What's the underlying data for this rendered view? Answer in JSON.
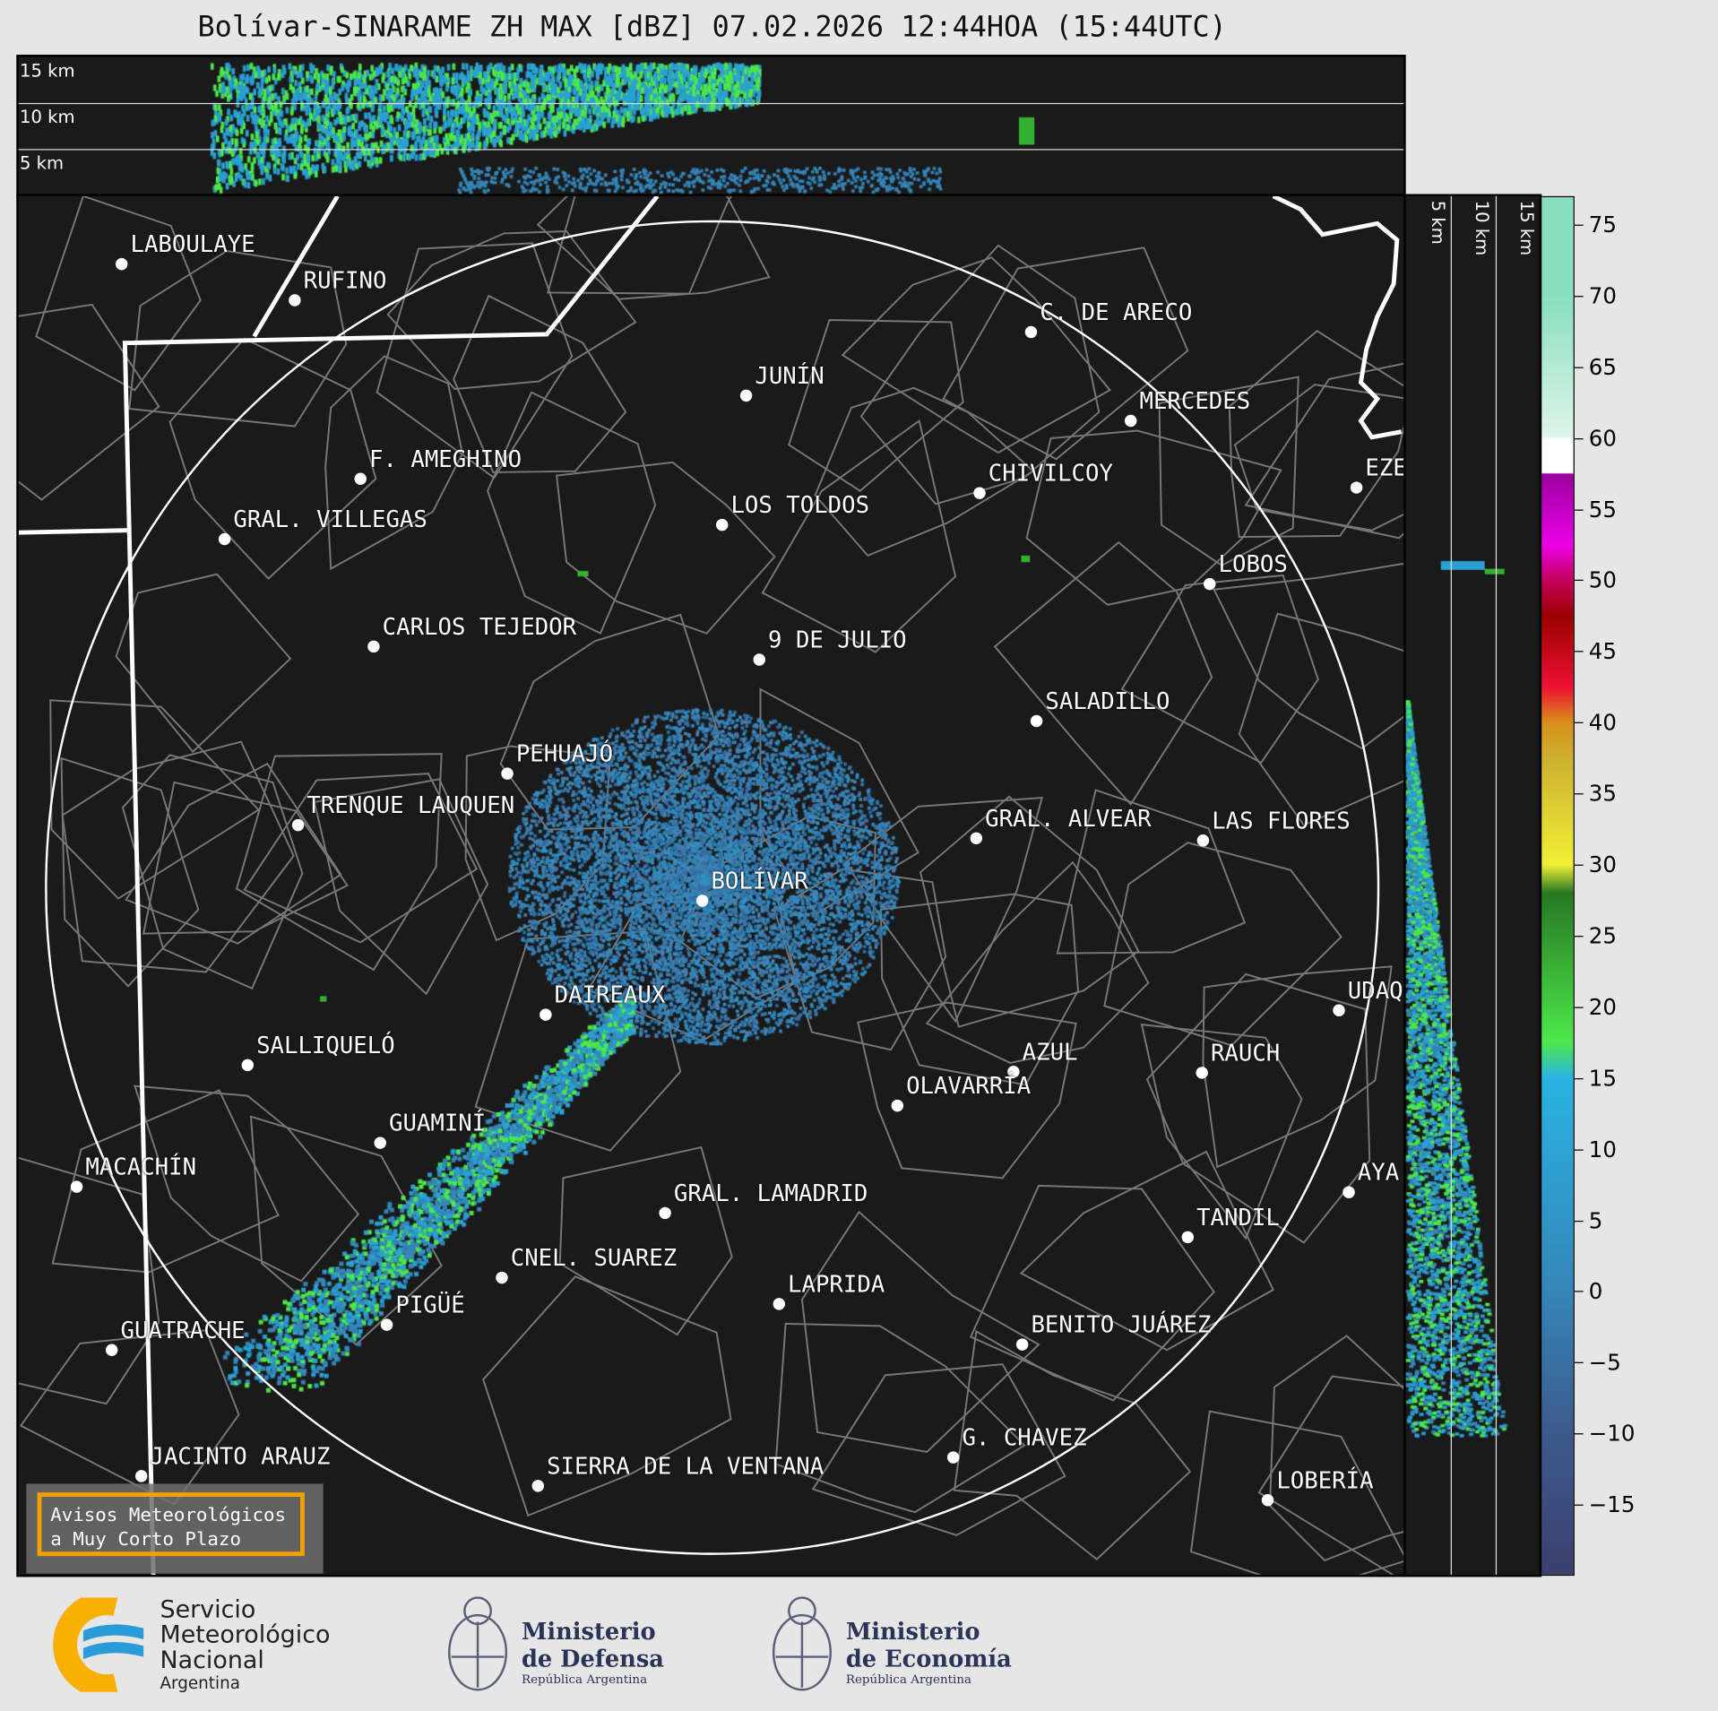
{
  "title": "Bolívar-SINARAME ZH MAX [dBZ] 07.02.2026 12:44HOA (15:44UTC)",
  "top_panel": {
    "height_labels": [
      "15 km",
      "10 km",
      "5 km"
    ]
  },
  "right_panel": {
    "height_labels": [
      "5 km",
      "10 km",
      "15 km"
    ]
  },
  "colorbar": {
    "units": "dBZ",
    "range": [
      -20,
      77
    ],
    "ticks": [
      "75",
      "70",
      "65",
      "60",
      "55",
      "50",
      "45",
      "40",
      "35",
      "30",
      "25",
      "20",
      "15",
      "10",
      "5",
      "0",
      "−5",
      "−10",
      "−15"
    ],
    "tick_values": [
      75,
      70,
      65,
      60,
      55,
      50,
      45,
      40,
      35,
      30,
      25,
      20,
      15,
      10,
      5,
      0,
      -5,
      -10,
      -15
    ],
    "colors": {
      "low": "#3a3f6e",
      "blue": "#2e92c6",
      "cyan": "#29b3e2",
      "green": "#4de84a",
      "dark_green": "#267822",
      "yellow": "#f0f035",
      "orange": "#dd8018",
      "red": "#cc0022",
      "magenta": "#ec00e8",
      "purple": "#9a009e",
      "white": "#ffffff",
      "teal": "#88dfbf"
    }
  },
  "map": {
    "background": "#1a1a1a",
    "radar_site": "BOLÍVAR",
    "cities": [
      "LABOULAYE",
      "RUFINO",
      "C. DE ARECO",
      "JUNÍN",
      "MERCEDES",
      "F. AMEGHINO",
      "CHIVILCOY",
      "EZE",
      "LOS TOLDOS",
      "GRAL. VILLEGAS",
      "LOBOS",
      "CARLOS TEJEDOR",
      "9 DE JULIO",
      "SALADILLO",
      "PEHUAJÓ",
      "TRENQUE LAUQUEN",
      "GRAL. ALVEAR",
      "LAS FLORES",
      "BOLÍVAR",
      "DAIREAUX",
      "UDAQ",
      "SALLIQUELÓ",
      "AZUL",
      "RAUCH",
      "OLAVARRÍA",
      "GUAMINÍ",
      "MACACHÍN",
      "AYA",
      "GRAL. LAMADRID",
      "TANDIL",
      "CNEL. SUAREZ",
      "LAPRIDA",
      "PIGÜÉ",
      "GUATRACHE",
      "BENITO JUÁREZ",
      "G. CHAVEZ",
      "JACINTO ARAUZ",
      "SIERRA DE LA VENTANA",
      "LOBERÍA"
    ]
  },
  "avisos": {
    "line1": "Avisos Meteorológicos",
    "line2": "a Muy Corto Plazo"
  },
  "logos": {
    "smn": {
      "line1": "Servicio",
      "line2": "Meteorológico",
      "line3": "Nacional",
      "line4": "Argentina"
    },
    "defensa": {
      "line1": "Ministerio",
      "line2": "de Defensa",
      "line3": "República Argentina"
    },
    "economia": {
      "line1": "Ministerio",
      "line2": "de Economía",
      "line3": "República Argentina"
    }
  }
}
